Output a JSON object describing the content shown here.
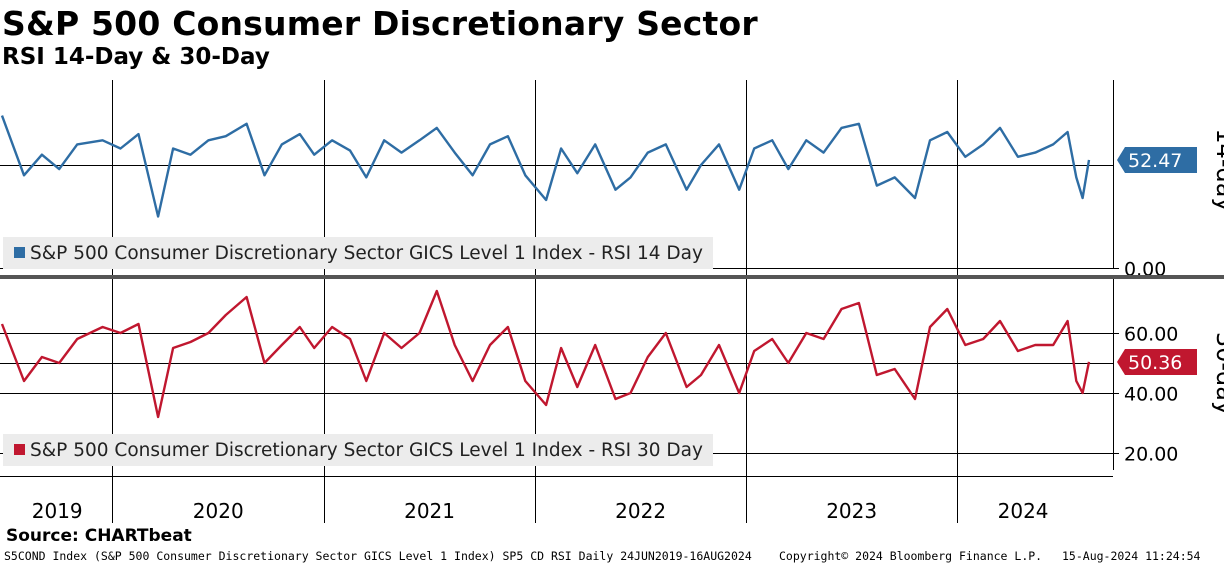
{
  "header": {
    "title": "S&P 500 Consumer Discretionary Sector",
    "subtitle": "RSI 14-Day & 30-Day"
  },
  "footer": {
    "source": "Source: CHARTbeat",
    "security": "S5COND Index (S&P 500 Consumer Discretionary Sector GICS Level 1 Index) SP5 CD RSI  Daily 24JUN2019-16AUG2024",
    "copyright": "Copyright© 2024 Bloomberg Finance L.P.",
    "timestamp": "15-Aug-2024 11:24:54"
  },
  "colors": {
    "rsi14": "#2e6da4",
    "rsi30": "#c0172f",
    "legend_bg": "#ececec",
    "grid": "#000000",
    "divider": "#555555"
  },
  "chart_data": [
    {
      "type": "line",
      "panel": "top",
      "ylabel": "14-day",
      "yticks": [
        "0.00"
      ],
      "ylim": [
        0,
        100
      ],
      "reference_line": 50,
      "last_value_label": "52.47",
      "last_value": 52.47,
      "legend": "S&P 500 Consumer Discretionary Sector GICS Level 1 Index - RSI 14 Day",
      "x_period": [
        "2019-06-24",
        "2024-08-16"
      ],
      "x_tick_labels": [
        "2019",
        "2020",
        "2021",
        "2022",
        "2023",
        "2024"
      ],
      "series": [
        {
          "name": "S&P 500 Consumer Discretionary Sector GICS Level 1 Index - RSI 14 Day",
          "x": [
            "2019-06-24",
            "2019-08-01",
            "2019-09-01",
            "2019-10-01",
            "2019-11-01",
            "2019-12-15",
            "2020-01-15",
            "2020-02-15",
            "2020-03-20",
            "2020-04-15",
            "2020-05-15",
            "2020-06-15",
            "2020-07-15",
            "2020-08-20",
            "2020-09-20",
            "2020-10-20",
            "2020-11-20",
            "2020-12-15",
            "2021-01-15",
            "2021-02-15",
            "2021-03-15",
            "2021-04-15",
            "2021-05-15",
            "2021-06-15",
            "2021-07-15",
            "2021-08-15",
            "2021-09-15",
            "2021-10-15",
            "2021-11-15",
            "2021-12-15",
            "2022-01-20",
            "2022-02-15",
            "2022-03-15",
            "2022-04-15",
            "2022-05-20",
            "2022-06-15",
            "2022-07-15",
            "2022-08-15",
            "2022-09-20",
            "2022-10-15",
            "2022-11-15",
            "2022-12-20",
            "2023-01-15",
            "2023-02-15",
            "2023-03-15",
            "2023-04-15",
            "2023-05-15",
            "2023-06-15",
            "2023-07-15",
            "2023-08-15",
            "2023-09-15",
            "2023-10-20",
            "2023-11-15",
            "2023-12-15",
            "2024-01-15",
            "2024-02-15",
            "2024-03-15",
            "2024-04-15",
            "2024-05-15",
            "2024-06-15",
            "2024-07-10",
            "2024-07-25",
            "2024-08-05",
            "2024-08-16"
          ],
          "values": [
            74,
            45,
            55,
            48,
            60,
            62,
            58,
            65,
            25,
            58,
            55,
            62,
            64,
            70,
            45,
            60,
            65,
            55,
            62,
            57,
            44,
            62,
            56,
            62,
            68,
            56,
            45,
            60,
            64,
            45,
            33,
            58,
            46,
            60,
            38,
            44,
            56,
            60,
            38,
            50,
            60,
            38,
            58,
            62,
            48,
            62,
            56,
            68,
            70,
            40,
            44,
            34,
            62,
            66,
            54,
            60,
            68,
            54,
            56,
            60,
            66,
            44,
            34,
            52.47
          ]
        }
      ]
    },
    {
      "type": "line",
      "panel": "bottom",
      "ylabel": "30-day",
      "yticks": [
        "60.00",
        "40.00",
        "20.00"
      ],
      "ylim": [
        18,
        80
      ],
      "reference_line": 50,
      "last_value_label": "50.36",
      "last_value": 50.36,
      "legend": "S&P 500 Consumer Discretionary Sector GICS Level 1 Index - RSI 30 Day",
      "x_period": [
        "2019-06-24",
        "2024-08-16"
      ],
      "x_tick_labels": [
        "2019",
        "2020",
        "2021",
        "2022",
        "2023",
        "2024"
      ],
      "series": [
        {
          "name": "S&P 500 Consumer Discretionary Sector GICS Level 1 Index - RSI 30 Day",
          "x": [
            "2019-06-24",
            "2019-08-01",
            "2019-09-01",
            "2019-10-01",
            "2019-11-01",
            "2019-12-15",
            "2020-01-15",
            "2020-02-15",
            "2020-03-20",
            "2020-04-15",
            "2020-05-15",
            "2020-06-15",
            "2020-07-15",
            "2020-08-20",
            "2020-09-20",
            "2020-10-20",
            "2020-11-20",
            "2020-12-15",
            "2021-01-15",
            "2021-02-15",
            "2021-03-15",
            "2021-04-15",
            "2021-05-15",
            "2021-06-15",
            "2021-07-15",
            "2021-08-15",
            "2021-09-15",
            "2021-10-15",
            "2021-11-15",
            "2021-12-15",
            "2022-01-20",
            "2022-02-15",
            "2022-03-15",
            "2022-04-15",
            "2022-05-20",
            "2022-06-15",
            "2022-07-15",
            "2022-08-15",
            "2022-09-20",
            "2022-10-15",
            "2022-11-15",
            "2022-12-20",
            "2023-01-15",
            "2023-02-15",
            "2023-03-15",
            "2023-04-15",
            "2023-05-15",
            "2023-06-15",
            "2023-07-15",
            "2023-08-15",
            "2023-09-15",
            "2023-10-20",
            "2023-11-15",
            "2023-12-15",
            "2024-01-15",
            "2024-02-15",
            "2024-03-15",
            "2024-04-15",
            "2024-05-15",
            "2024-06-15",
            "2024-07-10",
            "2024-07-25",
            "2024-08-05",
            "2024-08-16"
          ],
          "values": [
            63,
            44,
            52,
            50,
            58,
            62,
            60,
            63,
            32,
            55,
            57,
            60,
            66,
            72,
            50,
            56,
            62,
            55,
            62,
            58,
            44,
            60,
            55,
            60,
            74,
            56,
            44,
            56,
            62,
            44,
            36,
            55,
            42,
            56,
            38,
            40,
            52,
            60,
            42,
            46,
            56,
            40,
            54,
            58,
            50,
            60,
            58,
            68,
            70,
            46,
            48,
            38,
            62,
            68,
            56,
            58,
            64,
            54,
            56,
            56,
            64,
            44,
            40,
            50.36
          ]
        }
      ]
    }
  ]
}
